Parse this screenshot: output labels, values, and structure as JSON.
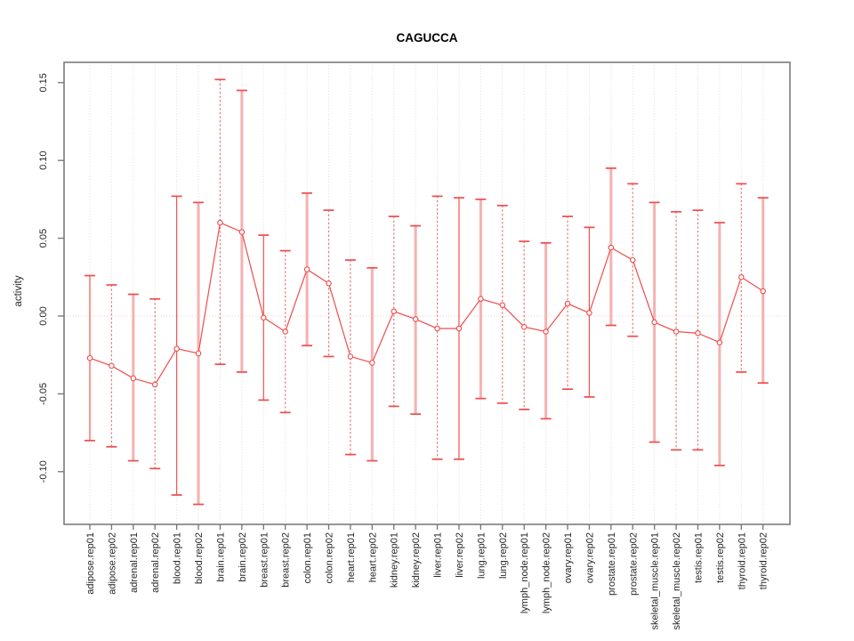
{
  "chart_data": {
    "type": "line",
    "title": "CAGUCCA",
    "xlabel": "",
    "ylabel": "activity",
    "legend": "none",
    "grid": "vertical dotted gridline at every category; dotted horizontal line at y=0",
    "marker": "open-circle",
    "ylim": [
      -0.134,
      0.163
    ],
    "ytick_labels": [
      "0.15",
      "0.10",
      "0.05",
      "0.00",
      "-0.05",
      "-0.10"
    ],
    "ytick_values": [
      0.15,
      0.1,
      0.05,
      0.0,
      -0.05,
      -0.1
    ],
    "categories": [
      "adipose.rep01",
      "adipose.rep02",
      "adrenal.rep01",
      "adrenal.rep02",
      "blood.rep01",
      "blood.rep02",
      "brain.rep01",
      "brain.rep02",
      "breast.rep01",
      "breast.rep02",
      "colon.rep01",
      "colon.rep02",
      "heart.rep01",
      "heart.rep02",
      "kidney.rep01",
      "kidney.rep02",
      "liver.rep01",
      "liver.rep02",
      "lung.rep01",
      "lung.rep02",
      "lymph_node.rep01",
      "lymph_node.rep02",
      "ovary.rep01",
      "ovary.rep02",
      "prostate.rep01",
      "prostate.rep02",
      "skeletal_muscle.rep01",
      "skeletal_muscle.rep02",
      "testis.rep01",
      "testis.rep02",
      "thyroid.rep01",
      "thyroid.rep02"
    ],
    "series": [
      {
        "name": "activity",
        "values": [
          -0.027,
          -0.032,
          -0.04,
          -0.044,
          -0.021,
          -0.024,
          0.06,
          0.054,
          -0.001,
          -0.01,
          0.03,
          0.021,
          -0.026,
          -0.03,
          0.003,
          -0.002,
          -0.008,
          -0.008,
          0.011,
          0.007,
          -0.007,
          -0.01,
          0.008,
          0.002,
          0.044,
          0.036,
          -0.004,
          -0.01,
          -0.011,
          -0.017,
          0.025,
          0.016
        ],
        "ci_high": [
          0.026,
          0.02,
          0.014,
          0.011,
          0.077,
          0.073,
          0.152,
          0.145,
          0.052,
          0.042,
          0.079,
          0.068,
          0.036,
          0.031,
          0.064,
          0.058,
          0.077,
          0.076,
          0.075,
          0.071,
          0.048,
          0.047,
          0.064,
          0.057,
          0.095,
          0.085,
          0.073,
          0.067,
          0.068,
          0.06,
          0.085,
          0.076
        ],
        "ci_low": [
          -0.08,
          -0.084,
          -0.093,
          -0.098,
          -0.115,
          -0.121,
          -0.031,
          -0.036,
          -0.054,
          -0.062,
          -0.019,
          -0.026,
          -0.089,
          -0.093,
          -0.058,
          -0.063,
          -0.092,
          -0.092,
          -0.053,
          -0.056,
          -0.06,
          -0.066,
          -0.047,
          -0.052,
          -0.006,
          -0.013,
          -0.081,
          -0.086,
          -0.086,
          -0.096,
          -0.036,
          -0.043
        ]
      }
    ],
    "error_bar_styles": [
      "solid",
      "dashed",
      "thick",
      "dashed",
      "solid",
      "thick",
      "dashed",
      "thick",
      "solid",
      "dashed",
      "thick",
      "dashed",
      "dashed",
      "thick",
      "dashed",
      "thick",
      "dashed",
      "solid",
      "thick",
      "dashed",
      "dashed",
      "thick",
      "dashed",
      "solid",
      "thick",
      "dashed",
      "thick",
      "dashed",
      "dashed",
      "thick",
      "dashed",
      "thick"
    ],
    "colors": {
      "line": "#ef4c4c",
      "marker_stroke": "#ef4c4c",
      "marker_fill": "#ffffff",
      "error_bar_solid": "#ef5350",
      "error_bar_dashed": "#f06a6a",
      "error_bar_thick": "#f5b1b1",
      "error_bar_cap": "#ef4c4c",
      "gridline": "#dedede",
      "zero_line": "#f3c9c9",
      "axis_border": "#737373",
      "tick_text": "#262626",
      "background": "#ffffff"
    }
  }
}
